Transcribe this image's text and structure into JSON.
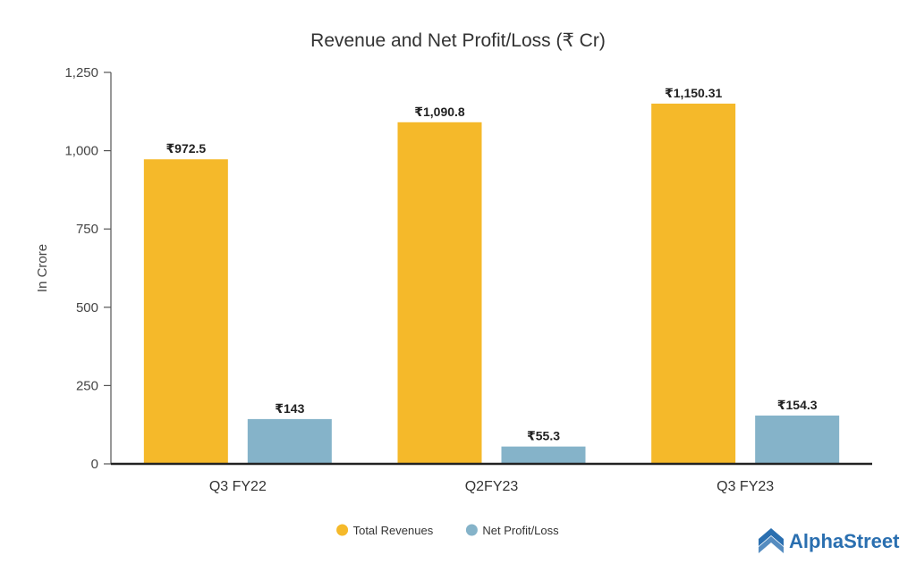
{
  "chart_data": {
    "type": "bar",
    "title": "Revenue and Net Profit/Loss (₹ Cr)",
    "ylabel": "In Crore",
    "xlabel": "",
    "ylim": [
      0,
      1250
    ],
    "yticks": [
      0,
      250,
      500,
      750,
      1000,
      1250
    ],
    "ytick_labels": [
      "0",
      "250",
      "500",
      "750",
      "1,000",
      "1,250"
    ],
    "categories": [
      "Q3 FY22",
      "Q2FY23",
      "Q3 FY23"
    ],
    "series": [
      {
        "name": "Total Revenues",
        "color": "#F5B92A",
        "values": [
          972.5,
          1090.8,
          1150.31
        ],
        "labels": [
          "₹972.5",
          "₹1,090.8",
          "₹1,150.31"
        ]
      },
      {
        "name": "Net Profit/Loss",
        "color": "#85B3C9",
        "values": [
          143,
          55.3,
          154.3
        ],
        "labels": [
          "₹143",
          "₹55.3",
          "₹154.3"
        ]
      }
    ],
    "legend_position": "bottom-center",
    "grid": false
  },
  "brand": {
    "name": "AlphaStreet",
    "color": "#2A6FB0",
    "icon": "alphastreet-logo-icon"
  }
}
